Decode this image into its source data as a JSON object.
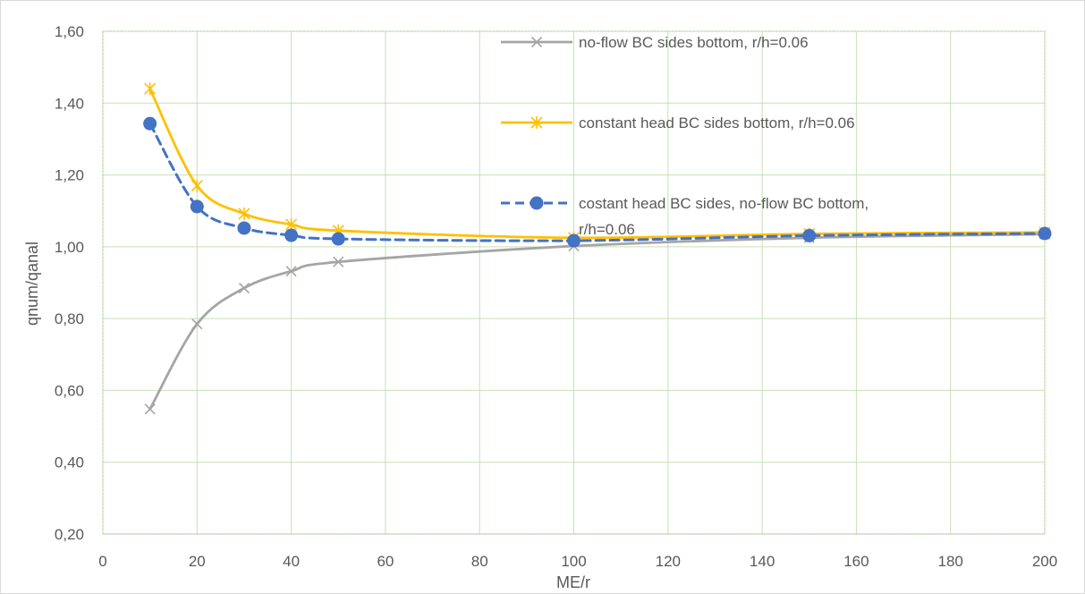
{
  "chart_data": {
    "type": "line",
    "xlabel": "ME/r",
    "ylabel": "qnum/qanal",
    "xlim": [
      0,
      200
    ],
    "ylim": [
      0.2,
      1.6
    ],
    "x_ticks": [
      0,
      20,
      40,
      60,
      80,
      100,
      120,
      140,
      160,
      180,
      200
    ],
    "x_tick_labels": [
      "0",
      "20",
      "40",
      "60",
      "80",
      "100",
      "120",
      "140",
      "160",
      "180",
      "200"
    ],
    "y_ticks": [
      0.2,
      0.4,
      0.6,
      0.8,
      1.0,
      1.2,
      1.4,
      1.6
    ],
    "y_tick_labels": [
      "0,20",
      "0,40",
      "0,60",
      "0,80",
      "1,00",
      "1,20",
      "1,40",
      "1,60"
    ],
    "grid": true,
    "legend_position": "top-right",
    "x": [
      10,
      20,
      30,
      40,
      50,
      100,
      150,
      200
    ],
    "series": [
      {
        "name": "no-flow BC sides bottom, r/h=0.06",
        "name_lines": [
          "no-flow BC sides bottom, r/h=0.06"
        ],
        "values": [
          0.548,
          0.785,
          0.885,
          0.932,
          0.958,
          1.002,
          1.025,
          1.035
        ],
        "color": "#a5a5a5",
        "marker": "x",
        "line_style": "solid"
      },
      {
        "name": "constant head BC sides bottom, r/h=0.06",
        "name_lines": [
          "constant head BC sides bottom, r/h=0.06"
        ],
        "values": [
          1.44,
          1.17,
          1.092,
          1.062,
          1.045,
          1.025,
          1.036,
          1.04
        ],
        "color": "#ffc000",
        "marker": "star",
        "line_style": "solid"
      },
      {
        "name": "costant head BC sides, no-flow BC bottom, r/h=0.06",
        "name_lines": [
          "costant head BC sides, no-flow BC bottom,",
          "r/h=0.06"
        ],
        "values": [
          1.343,
          1.112,
          1.052,
          1.032,
          1.022,
          1.017,
          1.031,
          1.037
        ],
        "color": "#4472c4",
        "marker": "circle",
        "line_style": "dashed"
      }
    ]
  }
}
